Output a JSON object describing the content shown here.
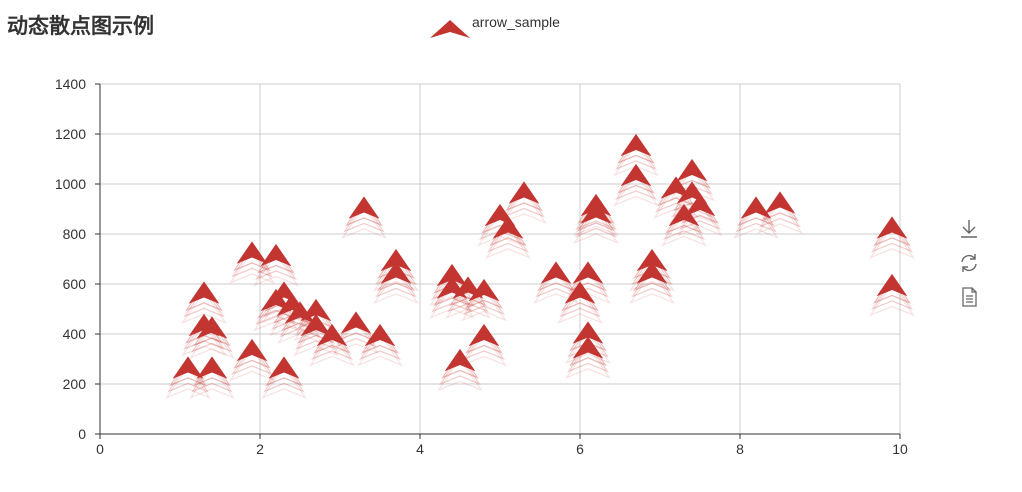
{
  "page": {
    "title": "动态散点图示例"
  },
  "legend": {
    "label": "arrow_sample",
    "color": "#c23531"
  },
  "toolbox": {
    "items": [
      "download-icon",
      "refresh-icon",
      "data-view-icon"
    ],
    "color": "#666666"
  },
  "chart_data": {
    "type": "scatter",
    "title": "动态散点图示例",
    "xlim": [
      0,
      10
    ],
    "ylim": [
      0,
      1400
    ],
    "x_ticks": [
      0,
      2,
      4,
      6,
      8,
      10
    ],
    "y_ticks": [
      0,
      200,
      400,
      600,
      800,
      1000,
      1200,
      1400
    ],
    "grid": true,
    "legend_position": "top-center",
    "series": [
      {
        "name": "arrow_sample",
        "symbol": "arrow",
        "color": "#c23531",
        "points": [
          [
            1.1,
            260
          ],
          [
            1.4,
            260
          ],
          [
            1.3,
            560
          ],
          [
            1.3,
            430
          ],
          [
            1.4,
            420
          ],
          [
            1.9,
            720
          ],
          [
            2.2,
            710
          ],
          [
            1.9,
            330
          ],
          [
            2.3,
            260
          ],
          [
            2.2,
            530
          ],
          [
            2.3,
            560
          ],
          [
            2.4,
            510
          ],
          [
            2.5,
            480
          ],
          [
            2.7,
            490
          ],
          [
            2.7,
            430
          ],
          [
            2.9,
            390
          ],
          [
            3.2,
            440
          ],
          [
            3.3,
            900
          ],
          [
            3.5,
            390
          ],
          [
            3.7,
            690
          ],
          [
            3.7,
            640
          ],
          [
            4.4,
            630
          ],
          [
            4.4,
            580
          ],
          [
            4.6,
            580
          ],
          [
            4.8,
            570
          ],
          [
            4.5,
            290
          ],
          [
            4.8,
            390
          ],
          [
            5.0,
            870
          ],
          [
            5.1,
            820
          ],
          [
            5.3,
            960
          ],
          [
            5.7,
            640
          ],
          [
            6.0,
            560
          ],
          [
            6.1,
            640
          ],
          [
            6.1,
            400
          ],
          [
            6.1,
            340
          ],
          [
            6.2,
            910
          ],
          [
            6.2,
            880
          ],
          [
            6.7,
            1150
          ],
          [
            6.7,
            1030
          ],
          [
            6.9,
            690
          ],
          [
            6.9,
            640
          ],
          [
            7.2,
            980
          ],
          [
            7.4,
            1050
          ],
          [
            7.4,
            960
          ],
          [
            7.3,
            870
          ],
          [
            7.5,
            910
          ],
          [
            8.2,
            900
          ],
          [
            8.5,
            920
          ],
          [
            9.9,
            820
          ],
          [
            9.9,
            590
          ]
        ]
      }
    ]
  }
}
